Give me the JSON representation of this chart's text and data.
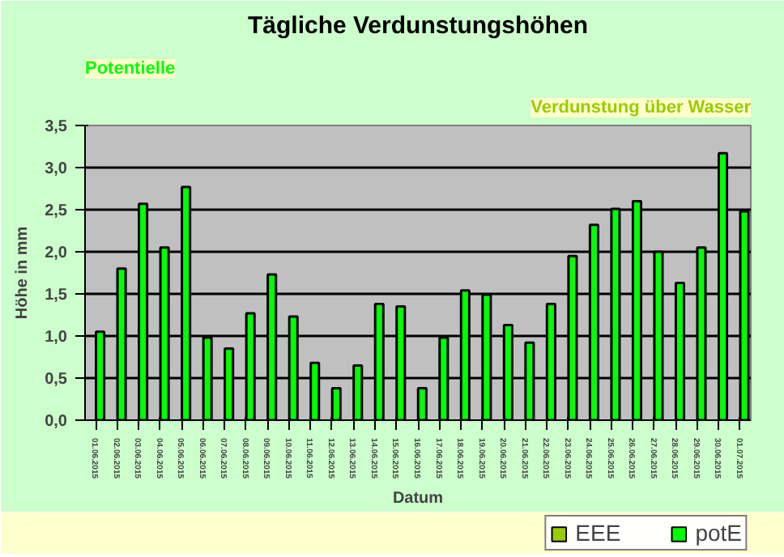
{
  "chart_data": {
    "type": "bar",
    "title": "Tägliche Verdunstungshöhen",
    "annotations": [
      "Potentielle",
      "Verdunstung über Wasser"
    ],
    "xlabel": "Datum",
    "ylabel": "Höhe in mm",
    "categories": [
      "01.06.2015",
      "02.06.2015",
      "03.06.2015",
      "04.06.2015",
      "05.06.2015",
      "06.06.2015",
      "07.06.2015",
      "08.06.2015",
      "09.06.2015",
      "10.06.2015",
      "11.06.2015",
      "12.06.2015",
      "13.06.2015",
      "14.06.2015",
      "15.06.2015",
      "16.06.2015",
      "17.06.2015",
      "18.06.2015",
      "19.06.2015",
      "20.06.2015",
      "21.06.2015",
      "22.06.2015",
      "23.06.2015",
      "24.06.2015",
      "25.06.2015",
      "26.06.2015",
      "27.06.2015",
      "28.06.2015",
      "29.06.2015",
      "30.06.2015",
      "01.07.2015"
    ],
    "series": [
      {
        "name": "EEE",
        "color": "#99cc00",
        "values": [
          null,
          null,
          null,
          null,
          null,
          null,
          null,
          null,
          null,
          null,
          null,
          null,
          null,
          null,
          null,
          null,
          null,
          null,
          null,
          null,
          null,
          null,
          null,
          null,
          null,
          null,
          null,
          null,
          null,
          null,
          null
        ]
      },
      {
        "name": "potE",
        "color": "#00ff00",
        "values": [
          1.05,
          1.8,
          2.57,
          2.05,
          2.77,
          0.98,
          0.85,
          1.27,
          1.73,
          1.23,
          0.68,
          0.38,
          0.65,
          1.38,
          1.35,
          0.38,
          0.98,
          1.54,
          1.49,
          1.13,
          0.92,
          1.38,
          1.95,
          2.32,
          2.51,
          2.6,
          2.0,
          1.63,
          2.05,
          3.17,
          2.48
        ]
      }
    ],
    "ylim": [
      0,
      3.5
    ],
    "yticks": [
      {
        "value": 0,
        "label": "0,0"
      },
      {
        "value": 0.5,
        "label": "0,5"
      },
      {
        "value": 1,
        "label": "1,0"
      },
      {
        "value": 1.5,
        "label": "1,5"
      },
      {
        "value": 2,
        "label": "2,0"
      },
      {
        "value": 2.5,
        "label": "2,5"
      },
      {
        "value": 3,
        "label": "3,0"
      },
      {
        "value": 3.5,
        "label": "3,5"
      }
    ],
    "grid": "y",
    "legend": "bottom right"
  }
}
